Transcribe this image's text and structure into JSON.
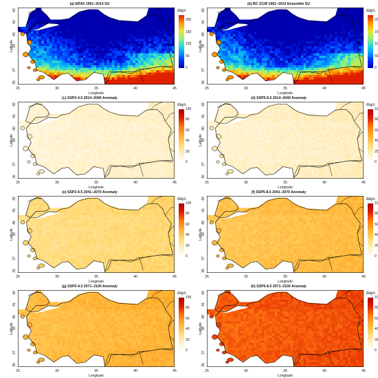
{
  "figure": {
    "panels": [
      {
        "id": "a",
        "title": "(a) ERA5 1961–2014 SU",
        "scale": "su",
        "cbar_ticks": [
          "200",
          "150",
          "100",
          "50",
          "0"
        ],
        "vmin": 0,
        "vmax": 220,
        "base": 0.5,
        "amp": 0.5,
        "blue_north": true
      },
      {
        "id": "b",
        "title": "(b) BC GCM 1961–2014 Ensemble SU",
        "scale": "su",
        "cbar_ticks": [
          "200",
          "150",
          "100",
          "50",
          "0"
        ],
        "vmin": 0,
        "vmax": 220,
        "base": 0.5,
        "amp": 0.5,
        "blue_north": true
      },
      {
        "id": "c",
        "title": "(c) SSP2-4.5 2014–2040 Anomaly",
        "scale": "anom",
        "cbar_ticks": [
          "100",
          "80",
          "60",
          "40",
          "20",
          "0"
        ],
        "vmin": 0,
        "vmax": 100,
        "base": 0.12,
        "amp": 0.12
      },
      {
        "id": "d",
        "title": "(d) SSP5-8.5 2014–2040 Anomaly",
        "scale": "anom",
        "cbar_ticks": [
          "100",
          "80",
          "60",
          "40",
          "20",
          "0"
        ],
        "vmin": 0,
        "vmax": 100,
        "base": 0.14,
        "amp": 0.12
      },
      {
        "id": "e",
        "title": "(e) SSP2-4.5 2041–2070 Anomaly",
        "scale": "anom",
        "cbar_ticks": [
          "100",
          "80",
          "60",
          "40",
          "20",
          "0"
        ],
        "vmin": 0,
        "vmax": 100,
        "base": 0.3,
        "amp": 0.14
      },
      {
        "id": "f",
        "title": "(f) SSP5-8.5 2041–2070 Anomaly",
        "scale": "anom",
        "cbar_ticks": [
          "100",
          "80",
          "60",
          "40",
          "20",
          "0"
        ],
        "vmin": 0,
        "vmax": 100,
        "base": 0.42,
        "amp": 0.16
      },
      {
        "id": "g",
        "title": "(g) SSP2-4.5 2071–2100 Anomaly",
        "scale": "anom",
        "cbar_ticks": [
          "100",
          "80",
          "60",
          "40",
          "20",
          "0"
        ],
        "vmin": 0,
        "vmax": 100,
        "base": 0.45,
        "amp": 0.16
      },
      {
        "id": "h",
        "title": "(h) SSP5-8.5 2071–2100 Anomaly",
        "scale": "anom",
        "cbar_ticks": [
          "100",
          "80",
          "60",
          "40",
          "20",
          "0"
        ],
        "vmin": 0,
        "vmax": 100,
        "base": 0.72,
        "amp": 0.14
      }
    ],
    "colorbar_unit": "days",
    "xlabel": "Longitude",
    "ylabel": "Latitude",
    "x_ticks": [
      "25",
      "30",
      "35",
      "40",
      "45"
    ],
    "y_ticks": [
      "36",
      "37",
      "39",
      "40",
      "41",
      "42"
    ],
    "lon_range": [
      25,
      45
    ],
    "lat_range": [
      35.8,
      42.2
    ],
    "colors": {
      "su_scale": [
        "#0000b0",
        "#0030ff",
        "#00a0ff",
        "#30e0d0",
        "#a0f070",
        "#f0e030",
        "#ff9000",
        "#e02000"
      ],
      "anom_scale": [
        "#ffffff",
        "#ffeec0",
        "#ffd870",
        "#ffb030",
        "#ff7810",
        "#e02000",
        "#b00000"
      ],
      "sea": "#ffffff",
      "coast": "#000000"
    }
  }
}
